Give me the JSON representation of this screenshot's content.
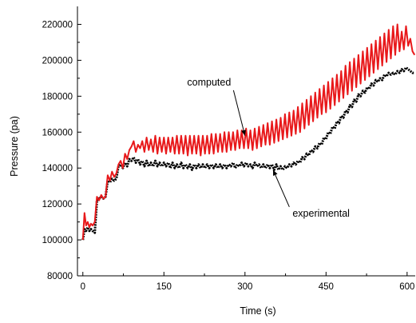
{
  "chart_data": {
    "type": "line",
    "title": "",
    "xlabel": "Time (s)",
    "ylabel": "Pressure (pa)",
    "xlim": [
      -10,
      615
    ],
    "ylim": [
      80000,
      230000
    ],
    "x_ticks": [
      0,
      150,
      300,
      450,
      600
    ],
    "x_tick_labels": [
      "0",
      "150",
      "300",
      "450",
      "600"
    ],
    "y_ticks": [
      80000,
      100000,
      120000,
      140000,
      160000,
      180000,
      200000,
      220000
    ],
    "y_tick_labels": [
      "80000",
      "100000",
      "120000",
      "140000",
      "160000",
      "180000",
      "200000",
      "220000"
    ],
    "grid": false,
    "legend": "none",
    "series": [
      {
        "color": "#e8191b",
        "style": "solid",
        "x": [
          0,
          3,
          6,
          9,
          12,
          15,
          18,
          22,
          26,
          30,
          34,
          38,
          42,
          46,
          50,
          54,
          58,
          62,
          66,
          70,
          74,
          78,
          82,
          86,
          90,
          94,
          98,
          102,
          106,
          110,
          114,
          118,
          122,
          126,
          130,
          134,
          138,
          142,
          146,
          150,
          154,
          158,
          162,
          166,
          170,
          174,
          178,
          182,
          186,
          190,
          194,
          198,
          202,
          206,
          210,
          214,
          218,
          222,
          226,
          230,
          234,
          238,
          242,
          246,
          250,
          254,
          258,
          262,
          266,
          270,
          274,
          278,
          282,
          286,
          290,
          294,
          298,
          302,
          306,
          310,
          314,
          318,
          322,
          326,
          330,
          334,
          338,
          342,
          346,
          350,
          354,
          358,
          362,
          366,
          370,
          374,
          378,
          382,
          386,
          390,
          394,
          398,
          402,
          406,
          410,
          414,
          418,
          422,
          426,
          430,
          434,
          438,
          442,
          446,
          450,
          454,
          458,
          462,
          466,
          470,
          474,
          478,
          482,
          486,
          490,
          494,
          498,
          502,
          506,
          510,
          514,
          518,
          522,
          526,
          530,
          534,
          538,
          542,
          546,
          550,
          554,
          558,
          562,
          566,
          570,
          574,
          578,
          582,
          586,
          590,
          594,
          598,
          602,
          606,
          610,
          614
        ],
        "values": [
          100000,
          115000,
          108000,
          110000,
          107000,
          109000,
          108000,
          110000,
          124000,
          122000,
          125000,
          123000,
          124000,
          136000,
          133000,
          138000,
          135000,
          137000,
          142000,
          144000,
          140000,
          148000,
          145000,
          150000,
          152000,
          155000,
          149000,
          153000,
          151000,
          155000,
          149000,
          157000,
          150000,
          156000,
          149000,
          158000,
          148000,
          157000,
          149000,
          157000,
          148000,
          157000,
          149000,
          157000,
          148000,
          158000,
          148000,
          158000,
          148000,
          158000,
          147000,
          158000,
          148000,
          158000,
          148000,
          158000,
          147000,
          158000,
          148000,
          158000,
          148000,
          159000,
          148000,
          159000,
          149000,
          159000,
          149000,
          160000,
          149000,
          160000,
          150000,
          160000,
          150000,
          161000,
          151000,
          161000,
          151000,
          162000,
          151000,
          161000,
          150000,
          162000,
          151000,
          163000,
          152000,
          164000,
          153000,
          165000,
          153000,
          166000,
          154000,
          167000,
          155000,
          168000,
          156000,
          170000,
          157000,
          171000,
          158000,
          172000,
          159000,
          174000,
          160000,
          176000,
          162000,
          178000,
          164000,
          180000,
          166000,
          182000,
          168000,
          184000,
          170000,
          186000,
          171000,
          188000,
          173000,
          190000,
          175000,
          192000,
          177000,
          194000,
          179000,
          197000,
          181000,
          199000,
          183000,
          201000,
          185000,
          203000,
          187000,
          205000,
          189000,
          207000,
          191000,
          209000,
          193000,
          211000,
          195000,
          213000,
          197000,
          215000,
          199000,
          217000,
          201000,
          219000,
          203000,
          220000,
          205000,
          216000,
          206000,
          219000,
          208000,
          212000,
          205000,
          203000
        ]
      },
      {
        "color": "#000000",
        "style": "dotted",
        "x": [
          0,
          3,
          6,
          9,
          12,
          15,
          18,
          22,
          26,
          30,
          34,
          38,
          42,
          46,
          50,
          54,
          58,
          62,
          66,
          70,
          74,
          78,
          82,
          86,
          90,
          94,
          98,
          102,
          106,
          110,
          114,
          118,
          122,
          126,
          130,
          134,
          138,
          142,
          146,
          150,
          154,
          158,
          162,
          166,
          170,
          174,
          178,
          182,
          186,
          190,
          194,
          198,
          202,
          206,
          210,
          214,
          218,
          222,
          226,
          230,
          234,
          238,
          242,
          246,
          250,
          254,
          258,
          262,
          266,
          270,
          274,
          278,
          282,
          286,
          290,
          294,
          298,
          302,
          306,
          310,
          314,
          318,
          322,
          326,
          330,
          334,
          338,
          342,
          346,
          350,
          354,
          358,
          362,
          366,
          370,
          374,
          378,
          382,
          386,
          390,
          394,
          398,
          402,
          406,
          410,
          414,
          418,
          422,
          426,
          430,
          434,
          438,
          442,
          446,
          450,
          454,
          458,
          462,
          466,
          470,
          474,
          478,
          482,
          486,
          490,
          494,
          498,
          502,
          506,
          510,
          514,
          518,
          522,
          526,
          530,
          534,
          538,
          542,
          546,
          550,
          554,
          558,
          562,
          566,
          570,
          574,
          578,
          582,
          586,
          590,
          594,
          598,
          602,
          606,
          610,
          614
        ],
        "values": [
          100000,
          106000,
          105000,
          107000,
          105000,
          106000,
          105000,
          104000,
          122000,
          123000,
          124000,
          123000,
          124000,
          133000,
          132000,
          134000,
          133000,
          134000,
          141000,
          142000,
          140000,
          143000,
          141000,
          145000,
          144000,
          146000,
          143000,
          145000,
          142000,
          144000,
          141000,
          144000,
          141000,
          143000,
          141000,
          144000,
          141000,
          143000,
          141000,
          143000,
          141000,
          143000,
          140000,
          143000,
          140000,
          142000,
          140000,
          143000,
          140000,
          142000,
          140000,
          142000,
          139000,
          142000,
          140000,
          142000,
          140000,
          142000,
          140000,
          142000,
          140000,
          142000,
          140000,
          142000,
          140000,
          142000,
          140000,
          142000,
          140000,
          142000,
          141000,
          143000,
          140000,
          142000,
          141000,
          143000,
          141000,
          143000,
          141000,
          142000,
          140000,
          143000,
          141000,
          142000,
          140000,
          142000,
          140000,
          142000,
          140000,
          142000,
          139000,
          142000,
          139000,
          141000,
          139000,
          141000,
          140000,
          142000,
          141000,
          143000,
          142000,
          144000,
          143000,
          146000,
          145000,
          148000,
          147000,
          150000,
          149000,
          152000,
          151000,
          154000,
          153000,
          157000,
          156000,
          160000,
          159000,
          163000,
          162000,
          166000,
          165000,
          169000,
          168000,
          172000,
          171000,
          175000,
          174000,
          178000,
          177000,
          181000,
          180000,
          183000,
          182000,
          185000,
          184000,
          187000,
          186000,
          189000,
          188000,
          190000,
          189000,
          192000,
          191000,
          193000,
          192000,
          193000,
          192000,
          194000,
          193000,
          195000,
          194000,
          196000,
          195000,
          194000,
          193000,
          193000
        ]
      }
    ],
    "annotations": [
      {
        "text": "computed",
        "x": 193,
        "y": 186000,
        "arrow_to_x": 300,
        "arrow_to_y": 158000
      },
      {
        "text": "experimental",
        "x": 388,
        "y": 113000,
        "arrow_to_x": 352,
        "arrow_to_y": 139000
      }
    ]
  }
}
